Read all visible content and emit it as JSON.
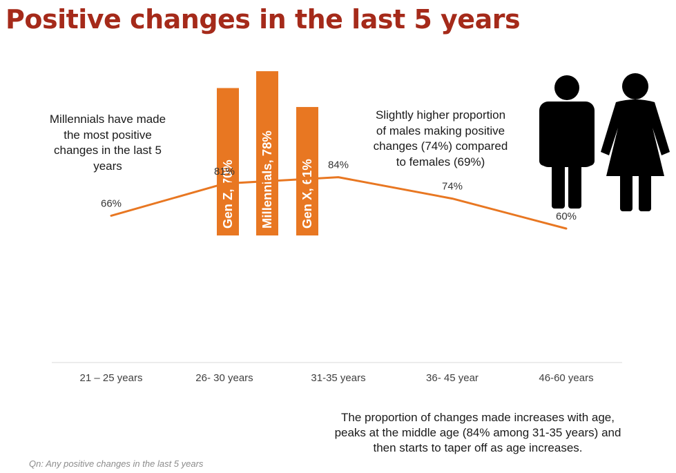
{
  "title": "Positive changes in the last 5 years",
  "notes": {
    "left": "Millennials have made the most positive changes in the last 5 years",
    "right": "Slightly higher proportion of males making positive changes (74%) compared to females (69%)",
    "bottom": "The proportion of changes made increases with age, peaks at the middle age (84% among 31-35 years) and then starts to taper off as age increases."
  },
  "footnote": "Qn: Any positive changes in the last 5 years",
  "colors": {
    "accent": "#e87722",
    "title": "#a52a1a",
    "icon": "#000000"
  },
  "icons": [
    "male-person-icon",
    "female-person-icon"
  ],
  "chart_data": [
    {
      "type": "bar",
      "categories": [
        "Gen Z",
        "Millennials",
        "Gen X"
      ],
      "values": [
        70,
        78,
        61
      ],
      "labels": [
        "Gen Z, 70%",
        "Millennials, 78%",
        "Gen X, 61%"
      ]
    },
    {
      "type": "line",
      "categories": [
        "21 – 25 years",
        "26- 30 years",
        "31-35 years",
        "36- 45 year",
        "46-60 years"
      ],
      "values": [
        66,
        81,
        84,
        74,
        60
      ],
      "data_labels": [
        "66%",
        "81%",
        "84%",
        "74%",
        "60%"
      ]
    }
  ]
}
